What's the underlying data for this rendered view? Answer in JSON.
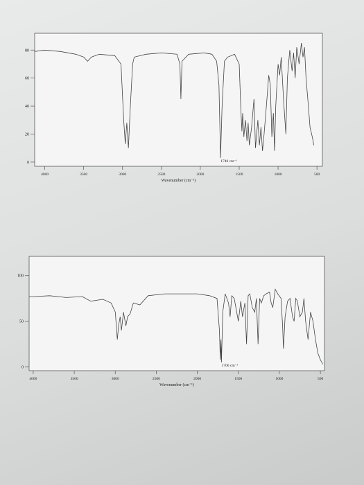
{
  "chart_data": [
    {
      "type": "line",
      "color": "#444444",
      "x_label": "Wavenumber (cm⁻¹)",
      "annotation": "1740 cm⁻¹",
      "xlim": [
        4130,
        430
      ],
      "ylim": [
        -3,
        92
      ],
      "xticks": [
        4000,
        3500,
        3000,
        2500,
        2000,
        1500,
        1000,
        500
      ],
      "yticks": [
        0,
        20,
        40,
        60,
        80
      ],
      "grid": false,
      "x": [
        4130,
        4000,
        3800,
        3600,
        3500,
        3450,
        3400,
        3300,
        3100,
        3020,
        2985,
        2965,
        2945,
        2925,
        2900,
        2870,
        2850,
        2700,
        2500,
        2300,
        2262,
        2250,
        2235,
        2150,
        1950,
        1850,
        1790,
        1760,
        1740,
        1720,
        1690,
        1650,
        1600,
        1560,
        1500,
        1480,
        1465,
        1455,
        1440,
        1420,
        1400,
        1385,
        1370,
        1340,
        1310,
        1290,
        1260,
        1240,
        1220,
        1200,
        1180,
        1150,
        1120,
        1100,
        1080,
        1060,
        1045,
        1030,
        1000,
        980,
        960,
        930,
        900,
        880,
        850,
        820,
        800,
        780,
        760,
        730,
        700,
        680,
        660,
        640,
        610,
        590,
        560,
        540
      ],
      "values": [
        79,
        80,
        79,
        77,
        75,
        72,
        75,
        77,
        76,
        70,
        30,
        13,
        28,
        10,
        40,
        70,
        75,
        77,
        78,
        77,
        70,
        45,
        72,
        77,
        78,
        77,
        72,
        55,
        3,
        40,
        72,
        75,
        76,
        77,
        70,
        40,
        22,
        35,
        18,
        30,
        15,
        28,
        12,
        25,
        45,
        10,
        30,
        12,
        25,
        8,
        20,
        40,
        62,
        55,
        18,
        35,
        8,
        40,
        70,
        62,
        75,
        45,
        20,
        60,
        80,
        65,
        78,
        60,
        82,
        70,
        85,
        75,
        82,
        60,
        40,
        25,
        18,
        12
      ]
    },
    {
      "type": "line",
      "color": "#444444",
      "x_label": "Wavenumber (cm⁻¹)",
      "annotation": "1706 cm⁻¹",
      "xlim": [
        4050,
        450
      ],
      "ylim": [
        -4,
        121
      ],
      "xticks": [
        4000,
        3500,
        3000,
        2500,
        2000,
        1500,
        1000,
        500
      ],
      "yticks": [
        0,
        50,
        100
      ],
      "grid": false,
      "x": [
        4050,
        4000,
        3800,
        3600,
        3400,
        3300,
        3150,
        3050,
        3000,
        2975,
        2960,
        2940,
        2925,
        2900,
        2870,
        2850,
        2820,
        2780,
        2700,
        2600,
        2400,
        2200,
        2000,
        1850,
        1760,
        1730,
        1720,
        1712,
        1706,
        1690,
        1660,
        1620,
        1600,
        1580,
        1550,
        1520,
        1500,
        1470,
        1450,
        1420,
        1400,
        1380,
        1360,
        1330,
        1300,
        1280,
        1260,
        1240,
        1220,
        1190,
        1160,
        1120,
        1100,
        1080,
        1050,
        1020,
        980,
        960,
        950,
        930,
        900,
        870,
        840,
        820,
        800,
        780,
        750,
        720,
        700,
        680,
        650,
        620,
        590,
        560,
        530,
        500,
        470
      ],
      "values": [
        77,
        77,
        78,
        76,
        77,
        72,
        74,
        70,
        60,
        30,
        45,
        55,
        40,
        60,
        45,
        55,
        58,
        70,
        68,
        78,
        80,
        80,
        80,
        78,
        75,
        40,
        8,
        30,
        5,
        60,
        80,
        70,
        55,
        78,
        75,
        60,
        50,
        72,
        55,
        70,
        25,
        78,
        80,
        65,
        60,
        75,
        25,
        75,
        70,
        78,
        80,
        82,
        70,
        65,
        85,
        80,
        75,
        45,
        20,
        55,
        72,
        75,
        55,
        50,
        75,
        72,
        55,
        60,
        75,
        50,
        30,
        60,
        50,
        30,
        15,
        8,
        3
      ]
    }
  ]
}
